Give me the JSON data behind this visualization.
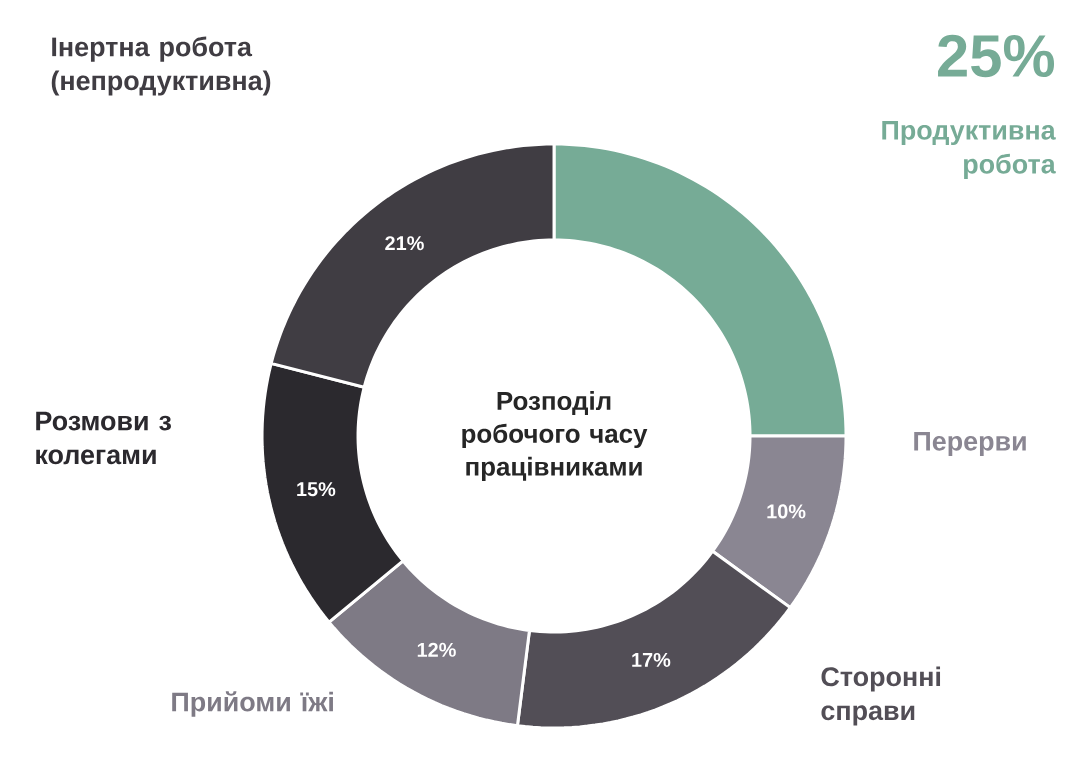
{
  "chart_data": {
    "type": "donut",
    "title": "Розподіл робочого часу працівниками",
    "categories": [
      "Продуктивна робота",
      "Перерви",
      "Сторонні справи",
      "Прийоми їжі",
      "Розмови з колегами",
      "Інертна робота (непродуктивна)"
    ],
    "values": [
      25,
      10,
      17,
      12,
      15,
      21
    ],
    "colors": [
      "#76ab96",
      "#8a8692",
      "#524e56",
      "#7e7a85",
      "#2b292e",
      "#403d43"
    ],
    "value_labels": [
      "25%",
      "10%",
      "17%",
      "12%",
      "15%",
      "21%"
    ]
  }
}
